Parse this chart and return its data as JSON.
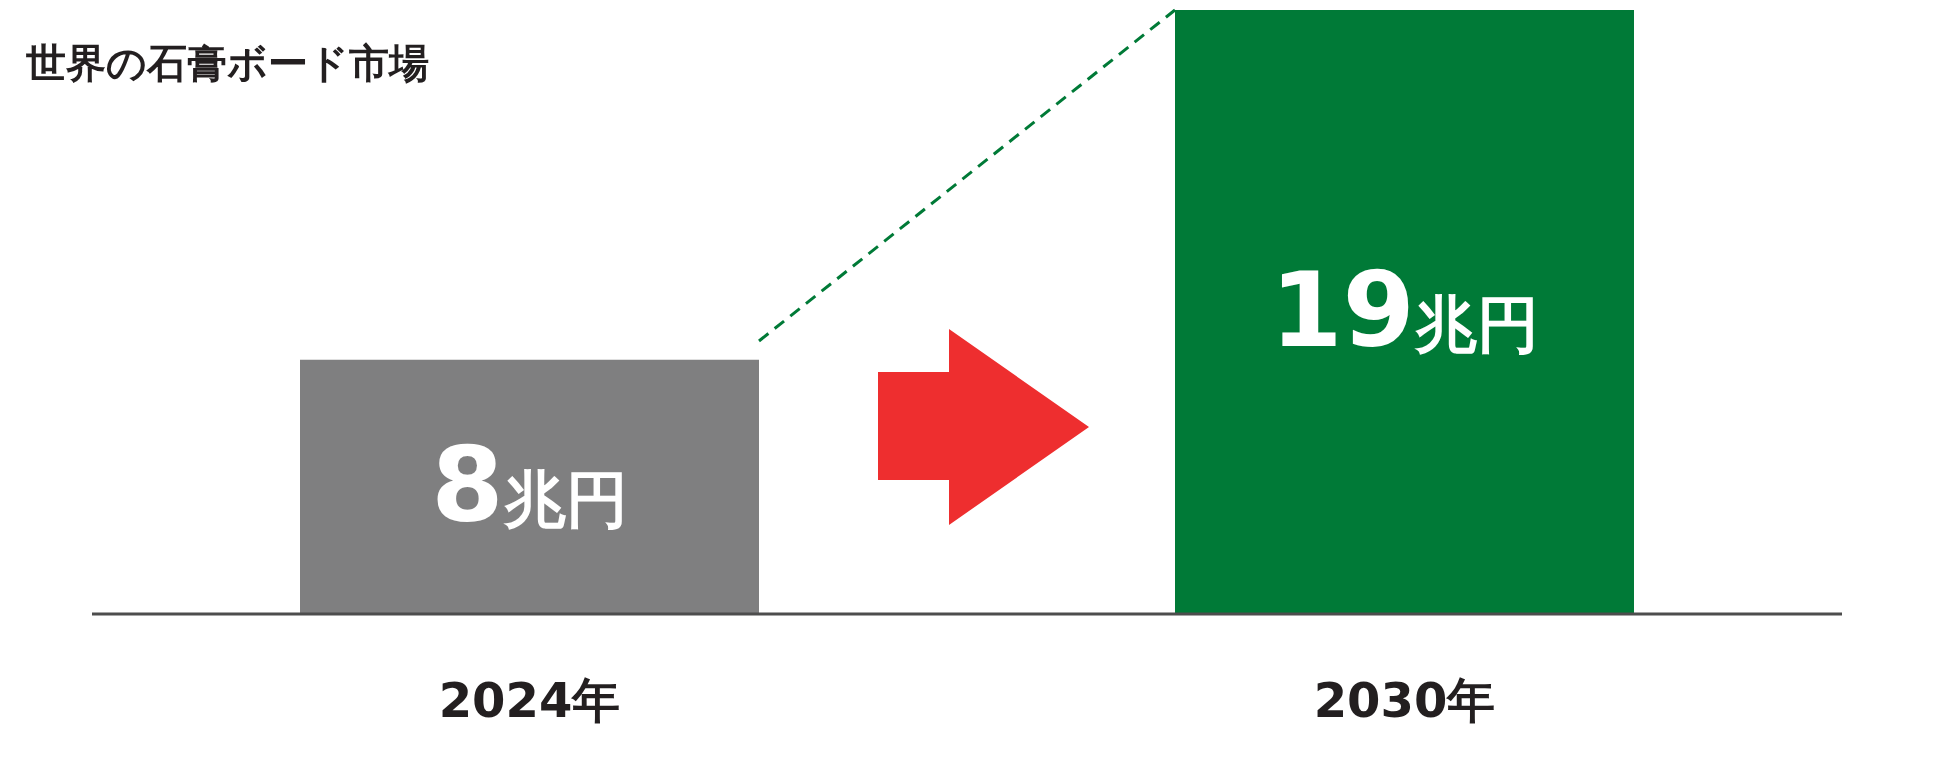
{
  "chart_data": {
    "type": "bar",
    "title": "世界の石膏ボード市場",
    "categories": [
      "2024年",
      "2030年"
    ],
    "values": [
      8,
      19
    ],
    "colors": [
      "#7f7f80",
      "#007a37"
    ],
    "value_labels": [
      "8兆円",
      "19兆円"
    ]
  }
}
